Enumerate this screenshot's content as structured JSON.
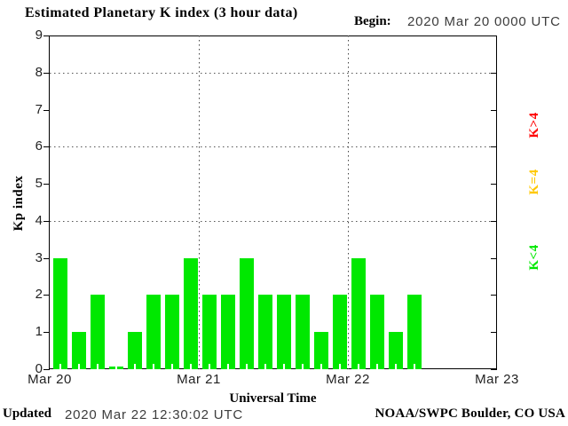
{
  "header": {
    "title": "Estimated Planetary K index (3 hour data)",
    "begin_label": "Begin:",
    "begin_value": "2020 Mar 20 0000 UTC"
  },
  "footer": {
    "updated_label": "Updated",
    "updated_value": "2020 Mar 22 12:30:02 UTC",
    "source": "NOAA/SWPC Boulder, CO USA"
  },
  "chart_data": {
    "type": "bar",
    "title": "Estimated Planetary K index (3 hour data)",
    "xlabel": "Universal Time",
    "ylabel": "Kp index",
    "begin": "2020 Mar 20 0000 UTC",
    "ylim": [
      0,
      9
    ],
    "yticks": [
      0,
      1,
      2,
      3,
      4,
      5,
      6,
      7,
      8,
      9
    ],
    "gridlines_y": [
      4,
      6,
      8
    ],
    "grid": "dotted",
    "x_day_labels": [
      "Mar 20",
      "Mar 21",
      "Mar 22",
      "Mar 23"
    ],
    "hours_per_bar": 3,
    "series": [
      {
        "day": "Mar 20",
        "kp": [
          3,
          1,
          2,
          0,
          1,
          2,
          2,
          3
        ]
      },
      {
        "day": "Mar 21",
        "kp": [
          2,
          2,
          3,
          2,
          2,
          2,
          1,
          2
        ]
      },
      {
        "day": "Mar 22",
        "kp": [
          3,
          2,
          1,
          2
        ]
      }
    ],
    "bar_color": "#00e800",
    "legend": [
      {
        "label": "K>4",
        "color": "#ff0000"
      },
      {
        "label": "K=4",
        "color": "#ffc800"
      },
      {
        "label": "K<4",
        "color": "#00e800"
      }
    ],
    "legend_position": "right-rotated"
  }
}
